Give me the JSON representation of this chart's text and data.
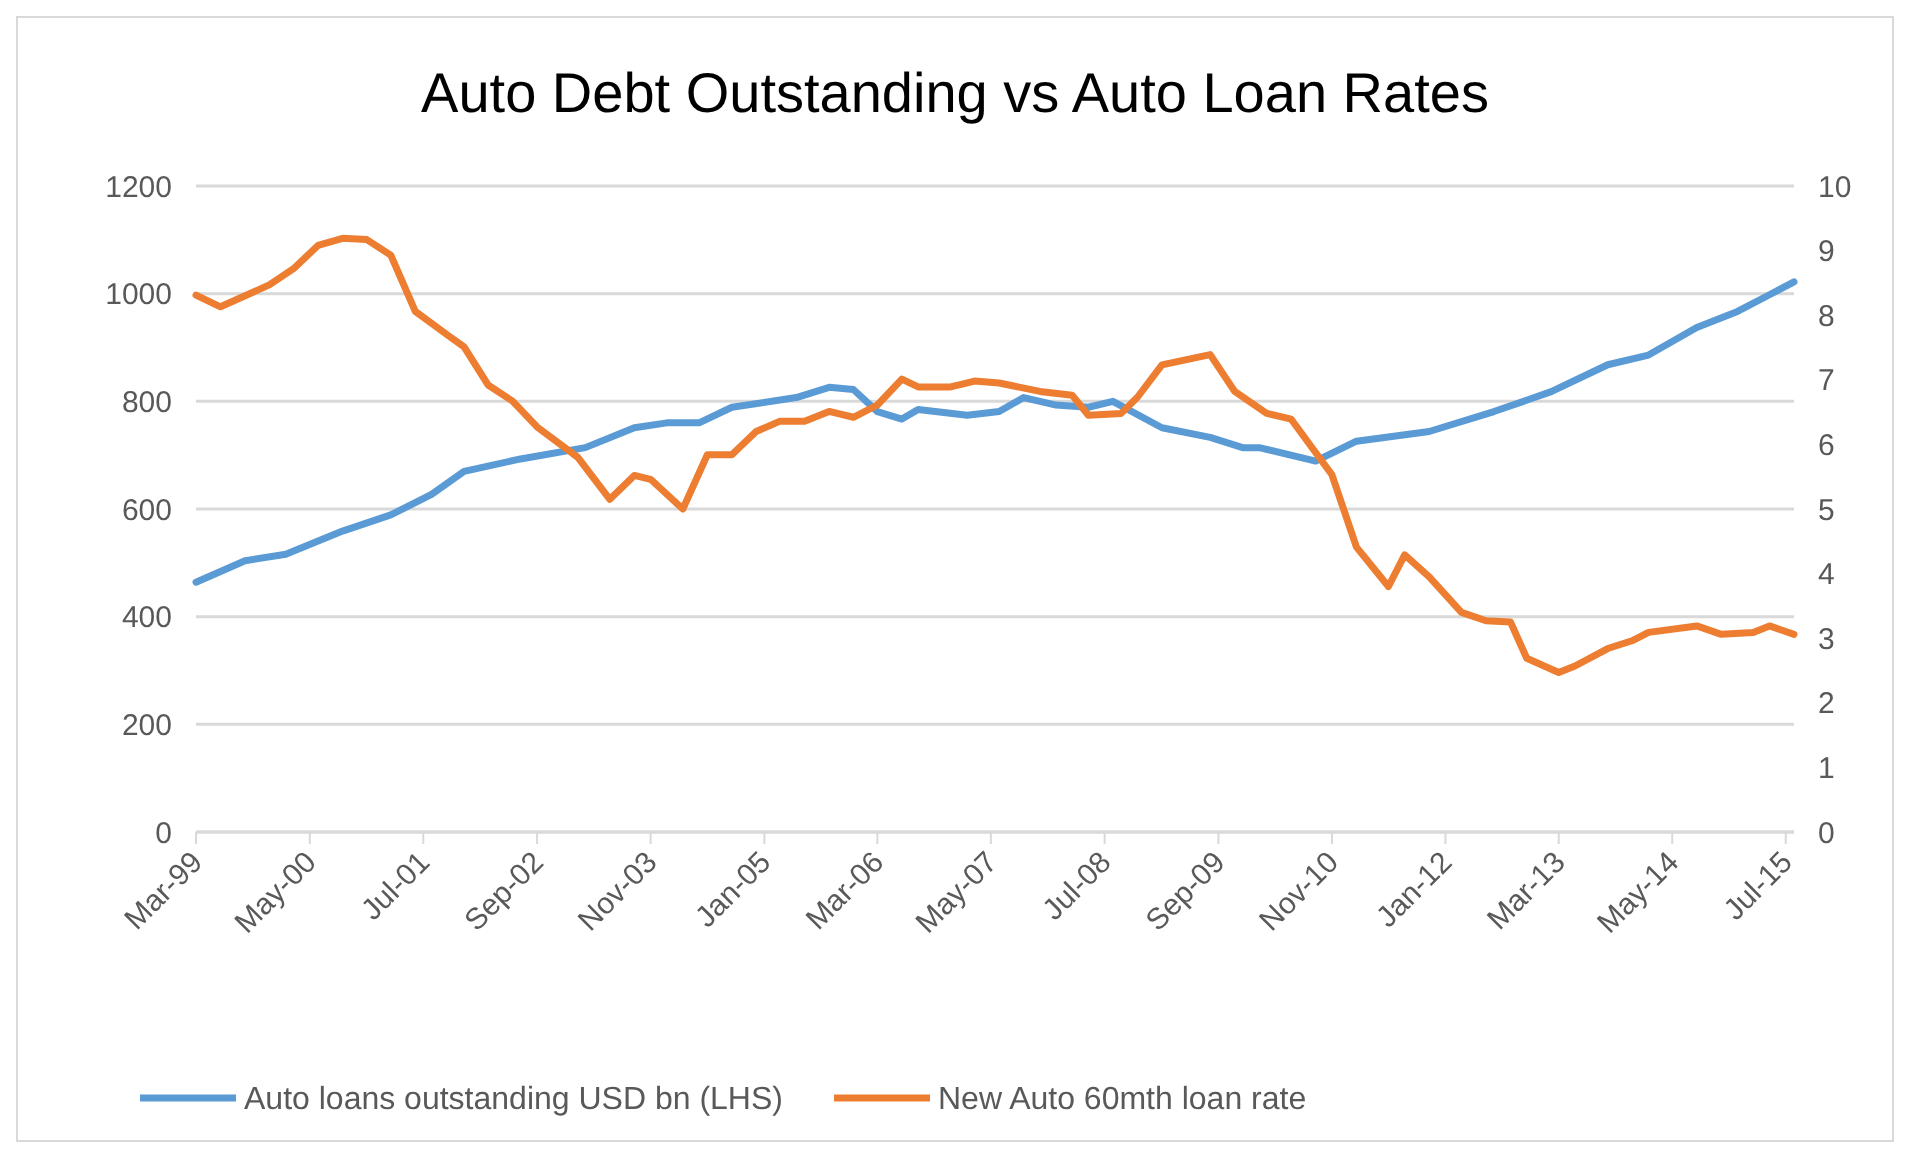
{
  "chart_data": {
    "type": "line",
    "title": "Auto Debt Outstanding vs Auto Loan Rates",
    "xlim": [
      "1999-03",
      "2015-08"
    ],
    "xticks": [
      {
        "value": "1999-03",
        "label": "Mar-99"
      },
      {
        "value": "2000-05",
        "label": "May-00"
      },
      {
        "value": "2001-07",
        "label": "Jul-01"
      },
      {
        "value": "2002-09",
        "label": "Sep-02"
      },
      {
        "value": "2003-11",
        "label": "Nov-03"
      },
      {
        "value": "2005-01",
        "label": "Jan-05"
      },
      {
        "value": "2006-03",
        "label": "Mar-06"
      },
      {
        "value": "2007-05",
        "label": "May-07"
      },
      {
        "value": "2008-07",
        "label": "Jul-08"
      },
      {
        "value": "2009-09",
        "label": "Sep-09"
      },
      {
        "value": "2010-11",
        "label": "Nov-10"
      },
      {
        "value": "2012-01",
        "label": "Jan-12"
      },
      {
        "value": "2013-03",
        "label": "Mar-13"
      },
      {
        "value": "2014-05",
        "label": "May-14"
      },
      {
        "value": "2015-07",
        "label": "Jul-15"
      }
    ],
    "ylim": [
      0,
      1200
    ],
    "yticks": [
      0,
      200,
      400,
      600,
      800,
      1000,
      1200
    ],
    "y2lim": [
      0,
      10
    ],
    "y2ticks": [
      0,
      1,
      2,
      3,
      4,
      5,
      6,
      7,
      8,
      9,
      10
    ],
    "grid": "y",
    "legend": "bottom",
    "marker": "none",
    "line_style": "solid",
    "series": [
      {
        "name": "Auto loans outstanding USD bn (LHS)",
        "color": "#5b9bd5",
        "x": [
          "1999-03",
          "1999-09",
          "2000-02",
          "2000-09",
          "2001-03",
          "2001-08",
          "2001-12",
          "2002-07",
          "2003-03",
          "2003-09",
          "2004-01",
          "2004-05",
          "2004-09",
          "2005-05",
          "2005-09",
          "2005-12",
          "2006-03",
          "2006-06",
          "2006-08",
          "2007-02",
          "2007-06",
          "2007-09",
          "2008-01",
          "2008-05",
          "2008-08",
          "2009-02",
          "2009-08",
          "2009-12",
          "2010-02",
          "2010-09",
          "2011-02",
          "2011-11",
          "2012-07",
          "2013-02",
          "2013-09",
          "2014-02",
          "2014-08",
          "2015-01",
          "2015-05",
          "2015-08"
        ],
        "values": [
          464,
          504,
          516,
          559,
          589,
          627,
          670,
          693,
          714,
          751,
          760,
          760,
          789,
          807,
          826,
          822,
          781,
          767,
          785,
          774,
          781,
          807,
          793,
          789,
          800,
          751,
          733,
          714,
          714,
          689,
          726,
          744,
          781,
          818,
          868,
          886,
          937,
          967,
          998,
          1022
        ]
      },
      {
        "name": "New Auto 60mth loan rate",
        "color": "#ed7d31",
        "axis": "y2",
        "x": [
          "1999-03",
          "1999-06",
          "1999-12",
          "2000-03",
          "2000-06",
          "2000-09",
          "2000-12",
          "2001-03",
          "2001-06",
          "2001-10",
          "2001-12",
          "2002-03",
          "2002-06",
          "2002-09",
          "2003-02",
          "2003-06",
          "2003-09",
          "2003-11",
          "2004-03",
          "2004-06",
          "2004-09",
          "2004-12",
          "2005-03",
          "2005-06",
          "2005-09",
          "2005-12",
          "2006-03",
          "2006-06",
          "2006-08",
          "2006-12",
          "2007-03",
          "2007-06",
          "2007-11",
          "2008-03",
          "2008-05",
          "2008-09",
          "2008-11",
          "2009-02",
          "2009-08",
          "2009-11",
          "2010-03",
          "2010-06",
          "2010-11",
          "2011-02",
          "2011-06",
          "2011-08",
          "2011-11",
          "2012-03",
          "2012-06",
          "2012-09",
          "2012-11",
          "2013-03",
          "2013-05",
          "2013-09",
          "2013-12",
          "2014-02",
          "2014-08",
          "2014-11",
          "2015-03",
          "2015-05",
          "2015-08"
        ],
        "values": [
          8.31,
          8.13,
          8.47,
          8.72,
          9.08,
          9.19,
          9.17,
          8.93,
          8.06,
          7.69,
          7.51,
          6.92,
          6.67,
          6.27,
          5.8,
          5.15,
          5.52,
          5.46,
          5.0,
          5.84,
          5.84,
          6.2,
          6.36,
          6.36,
          6.51,
          6.42,
          6.61,
          7.01,
          6.89,
          6.89,
          6.98,
          6.95,
          6.82,
          6.76,
          6.45,
          6.48,
          6.73,
          7.23,
          7.39,
          6.82,
          6.48,
          6.39,
          5.53,
          4.41,
          3.8,
          4.29,
          3.95,
          3.4,
          3.27,
          3.25,
          2.69,
          2.47,
          2.57,
          2.84,
          2.96,
          3.09,
          3.19,
          3.06,
          3.09,
          3.19,
          3.06
        ]
      }
    ]
  }
}
